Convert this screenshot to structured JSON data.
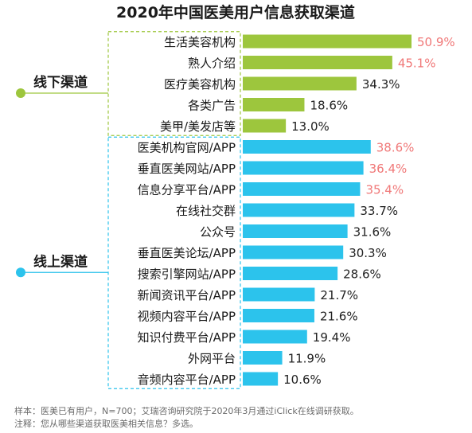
{
  "chart_data": {
    "type": "bar",
    "orientation": "horizontal",
    "title": "2020年中国医美用户信息获取渠道",
    "groups": [
      {
        "name": "线下渠道",
        "bar_color": "#9dc63d",
        "items": [
          {
            "label": "生活美容机构",
            "value": 50.9,
            "value_text": "50.9%",
            "highlight": true
          },
          {
            "label": "熟人介绍",
            "value": 45.1,
            "value_text": "45.1%",
            "highlight": true
          },
          {
            "label": "医疗美容机构",
            "value": 34.3,
            "value_text": "34.3%",
            "highlight": false
          },
          {
            "label": "各类广告",
            "value": 18.6,
            "value_text": "18.6%",
            "highlight": false
          },
          {
            "label": "美甲/美发店等",
            "value": 13.0,
            "value_text": "13.0%",
            "highlight": false
          }
        ]
      },
      {
        "name": "线上渠道",
        "bar_color": "#2cc3ec",
        "items": [
          {
            "label": "医美机构官网/APP",
            "value": 38.6,
            "value_text": "38.6%",
            "highlight": true
          },
          {
            "label": "垂直医美网站/APP",
            "value": 36.4,
            "value_text": "36.4%",
            "highlight": true
          },
          {
            "label": "信息分享平台/APP",
            "value": 35.4,
            "value_text": "35.4%",
            "highlight": true
          },
          {
            "label": "在线社交群",
            "value": 33.7,
            "value_text": "33.7%",
            "highlight": false
          },
          {
            "label": "公众号",
            "value": 31.6,
            "value_text": "31.6%",
            "highlight": false
          },
          {
            "label": "垂直医美论坛/APP",
            "value": 30.3,
            "value_text": "30.3%",
            "highlight": false
          },
          {
            "label": "搜索引擎网站/APP",
            "value": 28.6,
            "value_text": "28.6%",
            "highlight": false
          },
          {
            "label": "新闻资讯平台/APP",
            "value": 21.7,
            "value_text": "21.7%",
            "highlight": false
          },
          {
            "label": "视频内容平台/APP",
            "value": 21.6,
            "value_text": "21.6%",
            "highlight": false
          },
          {
            "label": "知识付费平台/APP",
            "value": 19.4,
            "value_text": "19.4%",
            "highlight": false
          },
          {
            "label": "外网平台",
            "value": 11.9,
            "value_text": "11.9%",
            "highlight": false
          },
          {
            "label": "音频内容平台/APP",
            "value": 10.6,
            "value_text": "10.6%",
            "highlight": false
          }
        ]
      }
    ],
    "xlim": [
      0,
      50.9
    ],
    "colors": {
      "highlight_text": "#f07878",
      "normal_text": "#222222",
      "title": "#1a1a1a"
    }
  },
  "footnotes": {
    "sample": "样本：医美已有用户，N=700；艾瑞咨询研究院于2020年3月通过iClick在线调研获取。",
    "note": "注释：您从哪些渠道获取医美相关信息？多选。"
  }
}
